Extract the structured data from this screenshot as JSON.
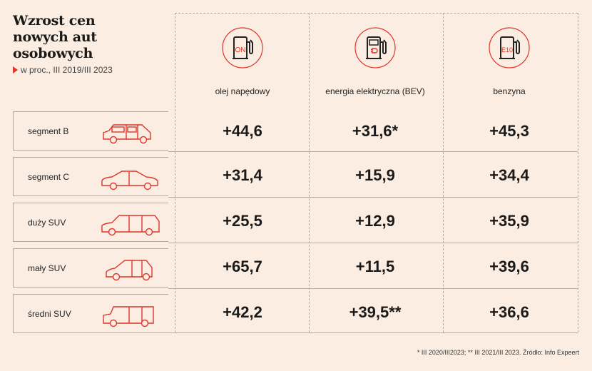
{
  "title_lines": [
    "Wzrost cen",
    "nowych aut",
    "osobowych"
  ],
  "subtitle": "w proc., III 2019/III 2023",
  "columns": [
    {
      "label": "olej napędowy",
      "icon": "diesel-pump-icon",
      "pump_text": "ON"
    },
    {
      "label": "energia elektryczna (BEV)",
      "icon": "ev-charger-icon",
      "pump_text": ""
    },
    {
      "label": "benzyna",
      "icon": "petrol-pump-icon",
      "pump_text": "E10"
    }
  ],
  "rows": [
    {
      "label": "segment B",
      "icon": "small-hatchback-icon",
      "values": [
        "+44,6",
        "+31,6*",
        "+45,3"
      ]
    },
    {
      "label": "segment C",
      "icon": "sedan-icon",
      "values": [
        "+31,4",
        "+15,9",
        "+34,4"
      ]
    },
    {
      "label": "duży SUV",
      "icon": "large-suv-icon",
      "values": [
        "+25,5",
        "+12,9",
        "+35,9"
      ]
    },
    {
      "label": "mały SUV",
      "icon": "small-suv-icon",
      "values": [
        "+65,7",
        "+11,5",
        "+39,6"
      ]
    },
    {
      "label": "średni SUV",
      "icon": "medium-suv-icon",
      "values": [
        "+42,2",
        "+39,5**",
        "+36,6"
      ]
    }
  ],
  "footnote": "* III 2020/III2023; ** III 2021/III 2023. Źródło: Info Expeert",
  "colors": {
    "background": "#fbede1",
    "accent": "#e0352b",
    "lines": "#b5aaa2"
  }
}
